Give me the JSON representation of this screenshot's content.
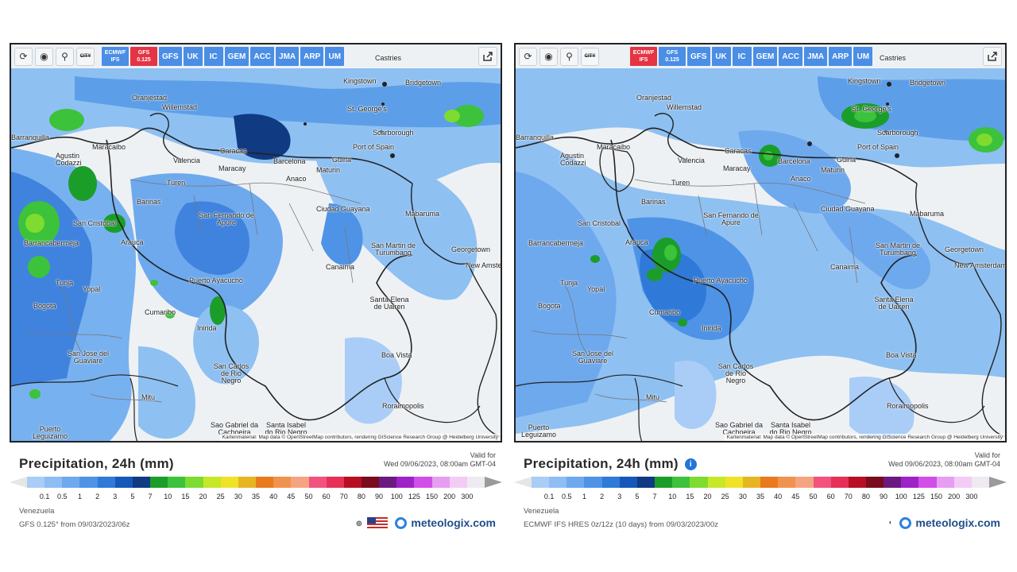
{
  "panels": [
    {
      "model_buttons": [
        {
          "label_top": "ECMWF",
          "label_bottom": "IFS",
          "active": false
        },
        {
          "label_top": "GFS",
          "label_bottom": "0.125",
          "active": true
        },
        {
          "label_top": "GFS",
          "label_bottom": "",
          "active": false
        },
        {
          "label_top": "UK",
          "label_bottom": "",
          "active": false
        },
        {
          "label_top": "IC",
          "label_bottom": "",
          "active": false
        },
        {
          "label_top": "GEM",
          "label_bottom": "",
          "active": false
        },
        {
          "label_top": "ACC",
          "label_bottom": "",
          "active": false
        },
        {
          "label_top": "JMA",
          "label_bottom": "",
          "active": false
        },
        {
          "label_top": "ARP",
          "label_bottom": "",
          "active": false
        },
        {
          "label_top": "UM",
          "label_bottom": "",
          "active": false
        }
      ],
      "title": "Precipitation, 24h (mm)",
      "valid_for_label": "Valid for",
      "valid_for_date": "Wed 09/06/2023, 08:00am GMT-04",
      "region": "Venezuela",
      "model_run": "GFS 0.125° from 09/03/2023/06z",
      "brand": "meteologix.com",
      "attribution": "Kartenmaterial: Map data © OpenStreetMap contributors, rendering GIScience Research Group @ Heidelberg University"
    },
    {
      "model_buttons": [
        {
          "label_top": "ECMWF",
          "label_bottom": "IFS",
          "active": true
        },
        {
          "label_top": "GFS",
          "label_bottom": "0.125",
          "active": false
        },
        {
          "label_top": "GFS",
          "label_bottom": "",
          "active": false
        },
        {
          "label_top": "UK",
          "label_bottom": "",
          "active": false
        },
        {
          "label_top": "IC",
          "label_bottom": "",
          "active": false
        },
        {
          "label_top": "GEM",
          "label_bottom": "",
          "active": false
        },
        {
          "label_top": "ACC",
          "label_bottom": "",
          "active": false
        },
        {
          "label_top": "JMA",
          "label_bottom": "",
          "active": false
        },
        {
          "label_top": "ARP",
          "label_bottom": "",
          "active": false
        },
        {
          "label_top": "UM",
          "label_bottom": "",
          "active": false
        }
      ],
      "title": "Precipitation, 24h (mm)",
      "valid_for_label": "Valid for",
      "valid_for_date": "Wed 09/06/2023, 08:00am GMT-04",
      "region": "Venezuela",
      "model_run": "ECMWF IFS HRES 0z/12z (10 days) from 09/03/2023/00z",
      "brand": "meteologix.com",
      "attribution": "Kartenmaterial: Map data © OpenStreetMap contributors, rendering GIScience Research Group @ Heidelberg University"
    }
  ],
  "toolbar": {
    "icons": [
      "refresh-icon",
      "location-pin-icon",
      "zoom-icon",
      "city-toggle-icon"
    ],
    "city_label": "CITY",
    "share_icon": "share-icon"
  },
  "cities": [
    "Castries",
    "Kingstown",
    "Bridgetown",
    "Oranjestad",
    "Willemstad",
    "St. George's",
    "Scarborough",
    "Port of Spain",
    "Maracaibo",
    "Caracas",
    "Barcelona",
    "Guiria",
    "Valencia",
    "Maracay",
    "Anaco",
    "Maturin",
    "Agustin Codazzi",
    "Barranquilla",
    "Turen",
    "Barinas",
    "Ciudad Guayana",
    "Mabaruma",
    "San Cristobal",
    "San Fernando de Apure",
    "Barrancabermeja",
    "Arauca",
    "San Martin de Turumbang",
    "Georgetown",
    "New Amsterdam",
    "Canaima",
    "Puerto Ayacucho",
    "Tunja",
    "Yopal",
    "Santa Elena de Uairen",
    "Bogota",
    "Cumaribo",
    "Inirida",
    "Boa Vista",
    "San Jose del Guaviare",
    "San Carlos de Rio Negro",
    "Mitu",
    "Roraimopolis",
    "Puerto Leguizamo",
    "Sao Gabriel da Cachoeira",
    "Santa Isabel do Rio Negro"
  ],
  "colorbar": {
    "colors": [
      "#a9cdf7",
      "#8dbdf3",
      "#6ea9ee",
      "#4f93e6",
      "#2f79d8",
      "#1558b9",
      "#103a82",
      "#1b9d2a",
      "#3cc23b",
      "#7ddc2f",
      "#c6e829",
      "#efe227",
      "#e7b521",
      "#ea7a1e",
      "#f0934e",
      "#f5a482",
      "#f1537e",
      "#e73058",
      "#b70e24",
      "#7a0c1e",
      "#6b1a82",
      "#9e22c8",
      "#d24ee8",
      "#e79ef2",
      "#f3ccf6",
      "#efeaf2"
    ],
    "ticks": [
      "0.1",
      "0.5",
      "1",
      "2",
      "3",
      "5",
      "7",
      "10",
      "15",
      "20",
      "25",
      "30",
      "35",
      "40",
      "45",
      "50",
      "60",
      "70",
      "80",
      "90",
      "100",
      "125",
      "150",
      "200",
      "300"
    ]
  }
}
